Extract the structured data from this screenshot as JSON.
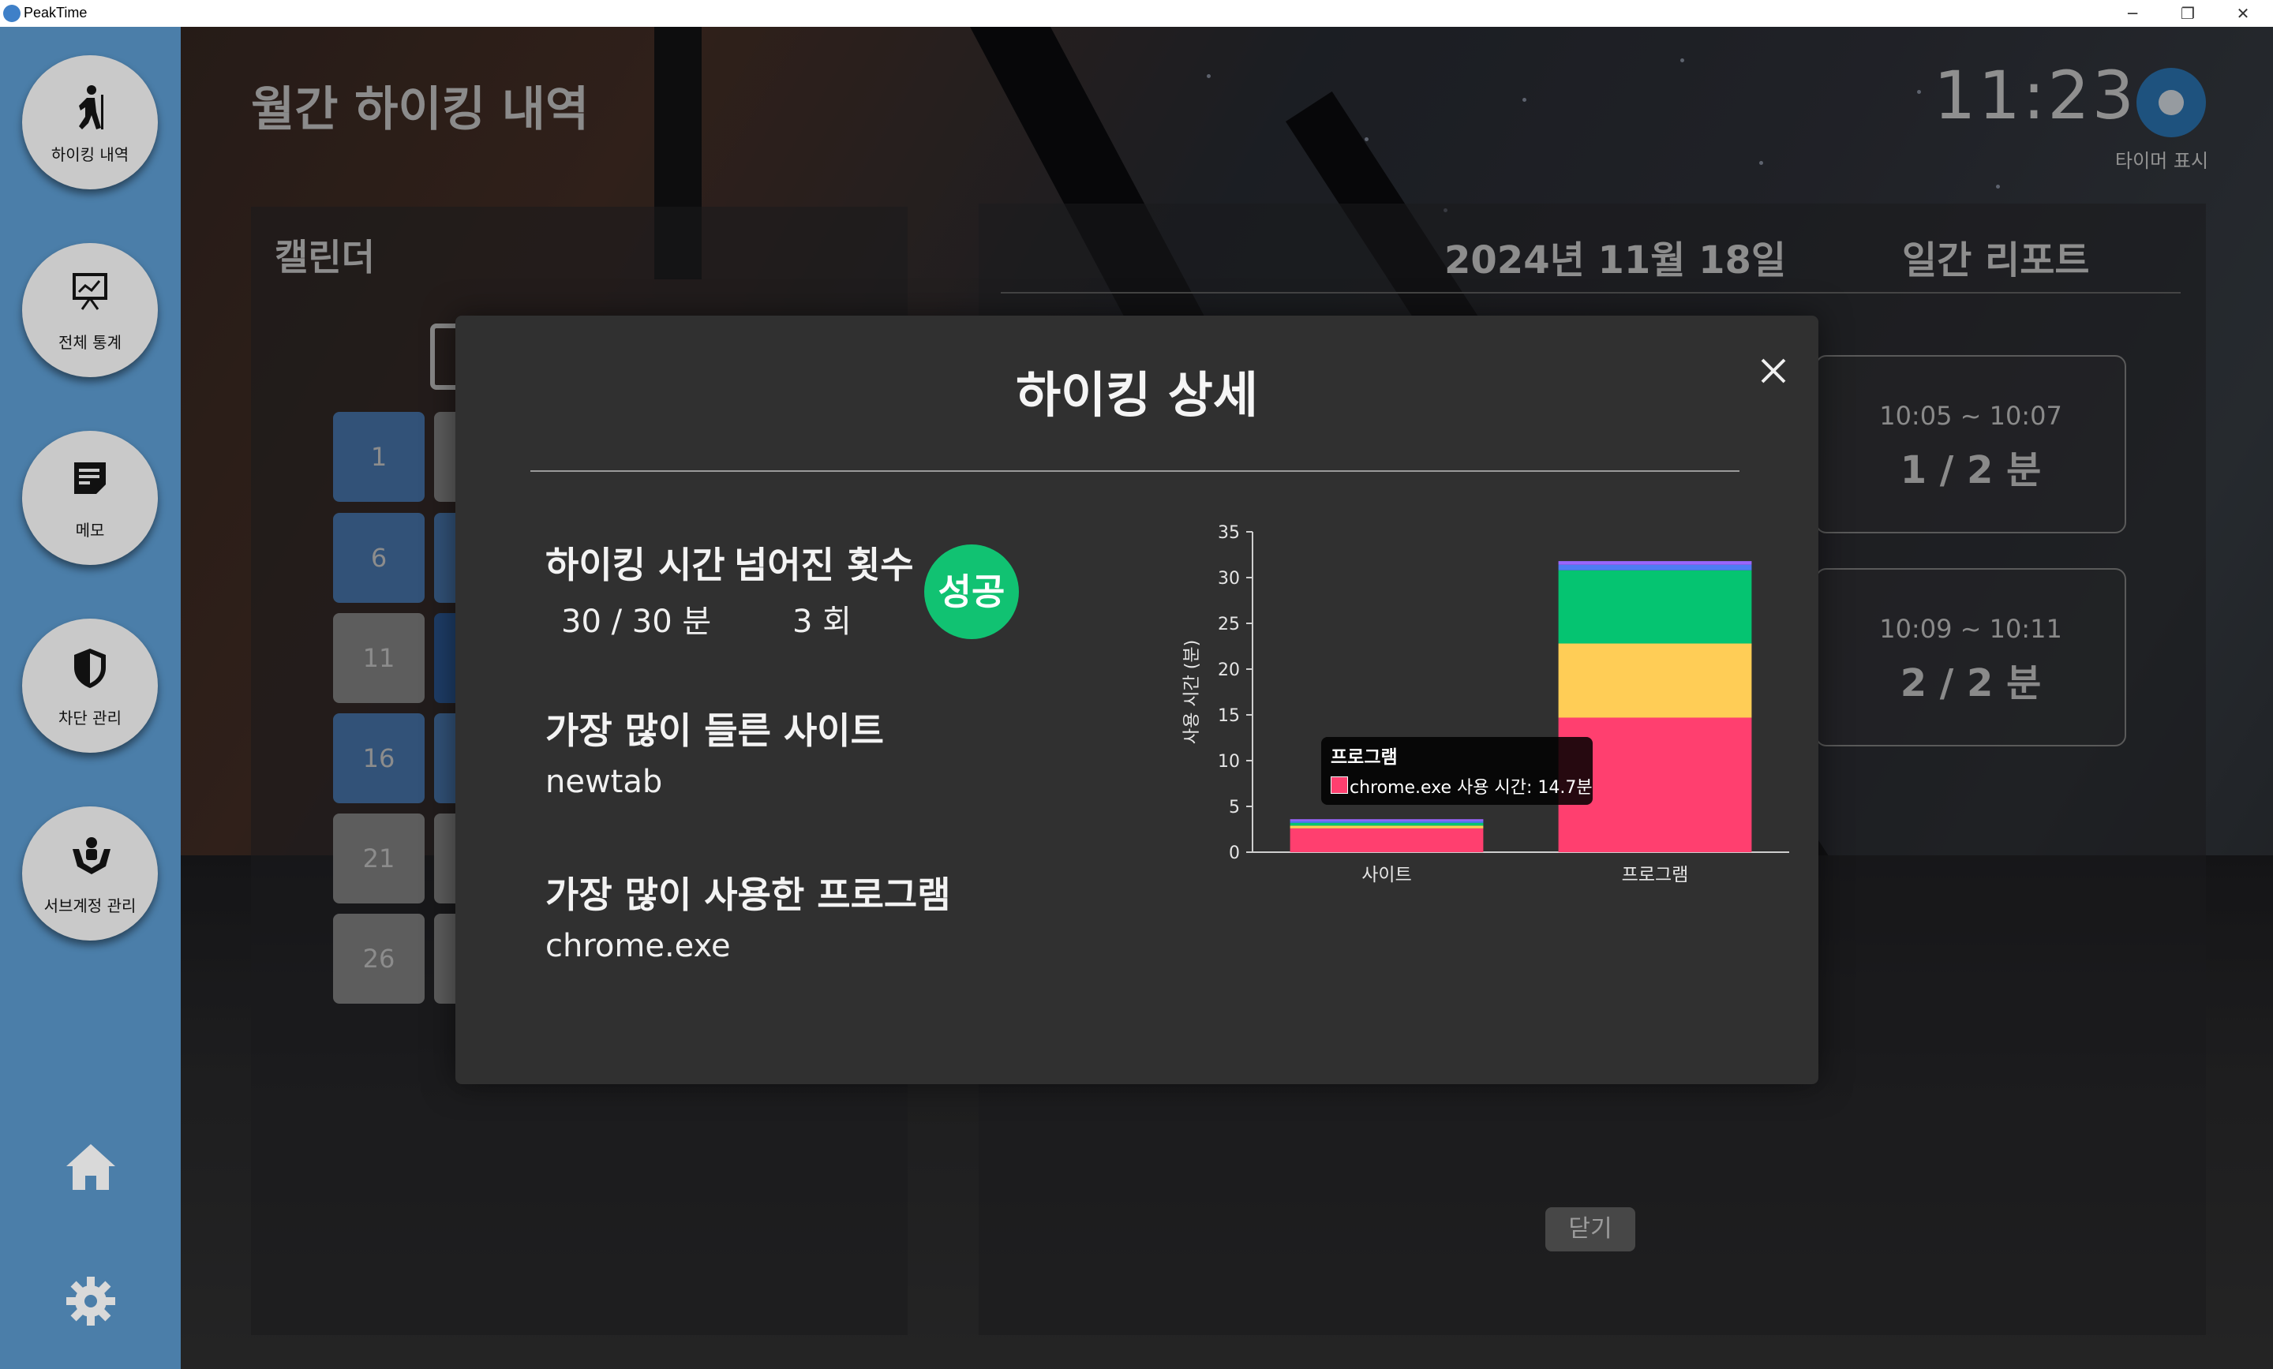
{
  "app": {
    "title": "PeakTime"
  },
  "window": {
    "minimize": "─",
    "restore": "❐",
    "close": "✕"
  },
  "sidebar": {
    "items": [
      {
        "label": "하이킹 내역",
        "icon": "hiking-icon"
      },
      {
        "label": "전체 통계",
        "icon": "chart-board-icon"
      },
      {
        "label": "메모",
        "icon": "memo-icon"
      },
      {
        "label": "차단 관리",
        "icon": "shield-icon"
      },
      {
        "label": "서브계정 관리",
        "icon": "sub-account-icon"
      }
    ],
    "home_icon": "home-icon",
    "settings_icon": "gear-icon"
  },
  "header": {
    "page_title": "월간 하이킹 내역",
    "clock": "11:23",
    "timer_label": "타이머 표시"
  },
  "calendar": {
    "title": "캘린더",
    "days": [
      "1",
      "6",
      "11",
      "16",
      "21",
      "26"
    ]
  },
  "report": {
    "date": "2024년 11월 18일",
    "title": "일간 리포트",
    "sessions": [
      {
        "time": "10:05 ~ 10:07",
        "ratio": "1 / 2 분"
      },
      {
        "time": "10:09 ~ 10:11",
        "ratio": "2 / 2 분"
      }
    ],
    "close_label": "닫기"
  },
  "modal": {
    "title": "하이킹 상세",
    "hiking_time_label": "하이킹 시간",
    "hiking_time_value": "30 / 30 분",
    "fall_count_label": "넘어진 횟수",
    "fall_count_value": "3 회",
    "result_badge": "성공",
    "top_site_label": "가장 많이 들른 사이트",
    "top_site_value": "newtab",
    "top_program_label": "가장 많이 사용한 프로그램",
    "top_program_value": "chrome.exe",
    "tooltip": {
      "title": "프로그램",
      "body": "chrome.exe 사용 시간: 14.7분"
    }
  },
  "chart_data": {
    "type": "bar",
    "stacked": true,
    "categories": [
      "사이트",
      "프로그램"
    ],
    "ylabel": "사용 시간 (분)",
    "ylim": [
      0,
      35
    ],
    "yticks": [
      0,
      5,
      10,
      15,
      20,
      25,
      30,
      35
    ],
    "series": [
      {
        "color": "#ff3f6f",
        "values": [
          2.6,
          14.7
        ]
      },
      {
        "color": "#ffcd56",
        "values": [
          0.3,
          8.1
        ]
      },
      {
        "color": "#05c471",
        "values": [
          0.3,
          8.0
        ]
      },
      {
        "color": "#4d7cf5",
        "values": [
          0.2,
          0.6
        ]
      },
      {
        "color": "#9966ff",
        "values": [
          0.2,
          0.4
        ]
      }
    ]
  }
}
